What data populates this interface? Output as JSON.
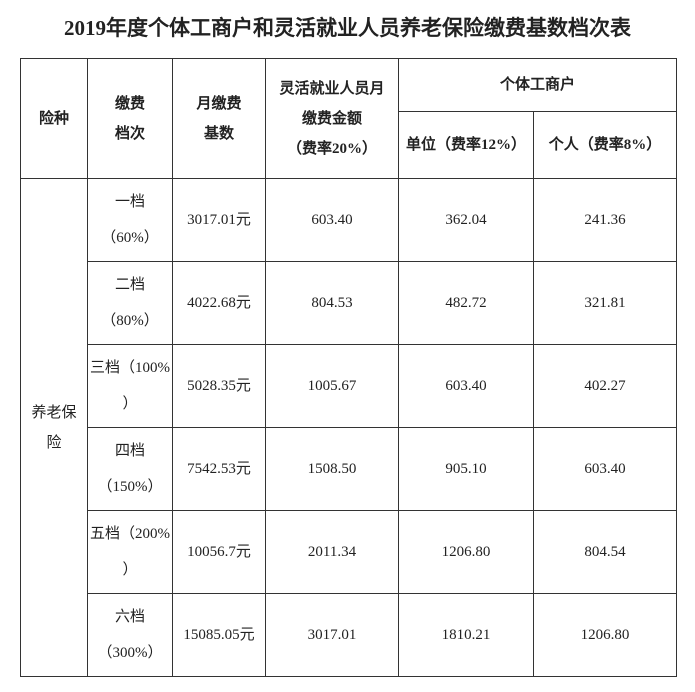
{
  "title": "2019年度个体工商户和灵活就业人员养老保险缴费基数档次表",
  "table": {
    "headers": {
      "type": "险种",
      "grade": [
        "缴费",
        "档次"
      ],
      "base": [
        "月缴费",
        "基数"
      ],
      "flex": [
        "灵活就业人员月",
        "缴费金额",
        "（费率20%）"
      ],
      "business": "个体工商户",
      "unit": "单位（费率12%）",
      "personal": "个人（费率8%）"
    },
    "insurance_type": "养老保险",
    "rows": [
      [
        [
          "一档",
          "（60%）"
        ],
        "3017.01元",
        "603.40",
        "362.04",
        "241.36"
      ],
      [
        [
          "二档",
          "（80%）"
        ],
        "4022.68元",
        "804.53",
        "482.72",
        "321.81"
      ],
      [
        [
          "三档（100%",
          "）"
        ],
        "5028.35元",
        "1005.67",
        "603.40",
        "402.27"
      ],
      [
        [
          "四档",
          "（150%）"
        ],
        "7542.53元",
        "1508.50",
        "905.10",
        "603.40"
      ],
      [
        [
          "五档（200%",
          "）"
        ],
        "10056.7元",
        "2011.34",
        "1206.80",
        "804.54"
      ],
      [
        [
          "六档",
          "（300%）"
        ],
        "15085.05元",
        "3017.01",
        "1810.21",
        "1206.80"
      ]
    ]
  }
}
